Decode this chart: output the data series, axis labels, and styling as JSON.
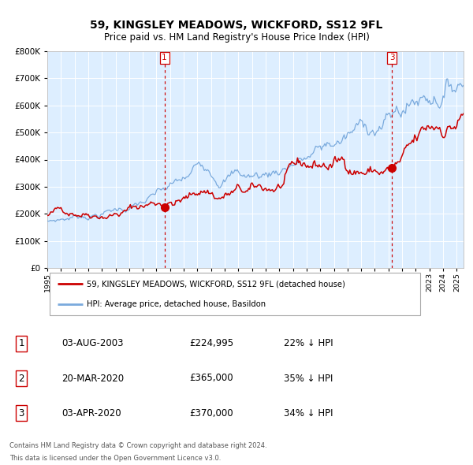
{
  "title": "59, KINGSLEY MEADOWS, WICKFORD, SS12 9FL",
  "subtitle": "Price paid vs. HM Land Registry's House Price Index (HPI)",
  "legend_property": "59, KINGSLEY MEADOWS, WICKFORD, SS12 9FL (detached house)",
  "legend_hpi": "HPI: Average price, detached house, Basildon",
  "footer1": "Contains HM Land Registry data © Crown copyright and database right 2024.",
  "footer2": "This data is licensed under the Open Government Licence v3.0.",
  "transactions": [
    {
      "num": "1",
      "date": "03-AUG-2003",
      "price": "£224,995",
      "hpi": "22% ↓ HPI",
      "year": 2003.583
    },
    {
      "num": "2",
      "date": "20-MAR-2020",
      "price": "£365,000",
      "hpi": "35% ↓ HPI",
      "year": 2020.208
    },
    {
      "num": "3",
      "date": "03-APR-2020",
      "price": "£370,000",
      "hpi": "34% ↓ HPI",
      "year": 2020.25
    }
  ],
  "vline_years": [
    2003.583,
    2020.25
  ],
  "vline_labels": [
    "1",
    "3"
  ],
  "dot_sales": [
    {
      "year": 2003.583,
      "value": 224995
    },
    {
      "year": 2020.25,
      "value": 370000
    }
  ],
  "ylim": [
    0,
    800000
  ],
  "xlim_start": 1995.0,
  "xlim_end": 2025.5,
  "bg_color": "#ddeeff",
  "red_color": "#cc0000",
  "blue_color": "#7aaadd",
  "grid_color": "#ffffff",
  "vline_color": "#cc0000",
  "title_fontsize": 10,
  "subtitle_fontsize": 8.5
}
